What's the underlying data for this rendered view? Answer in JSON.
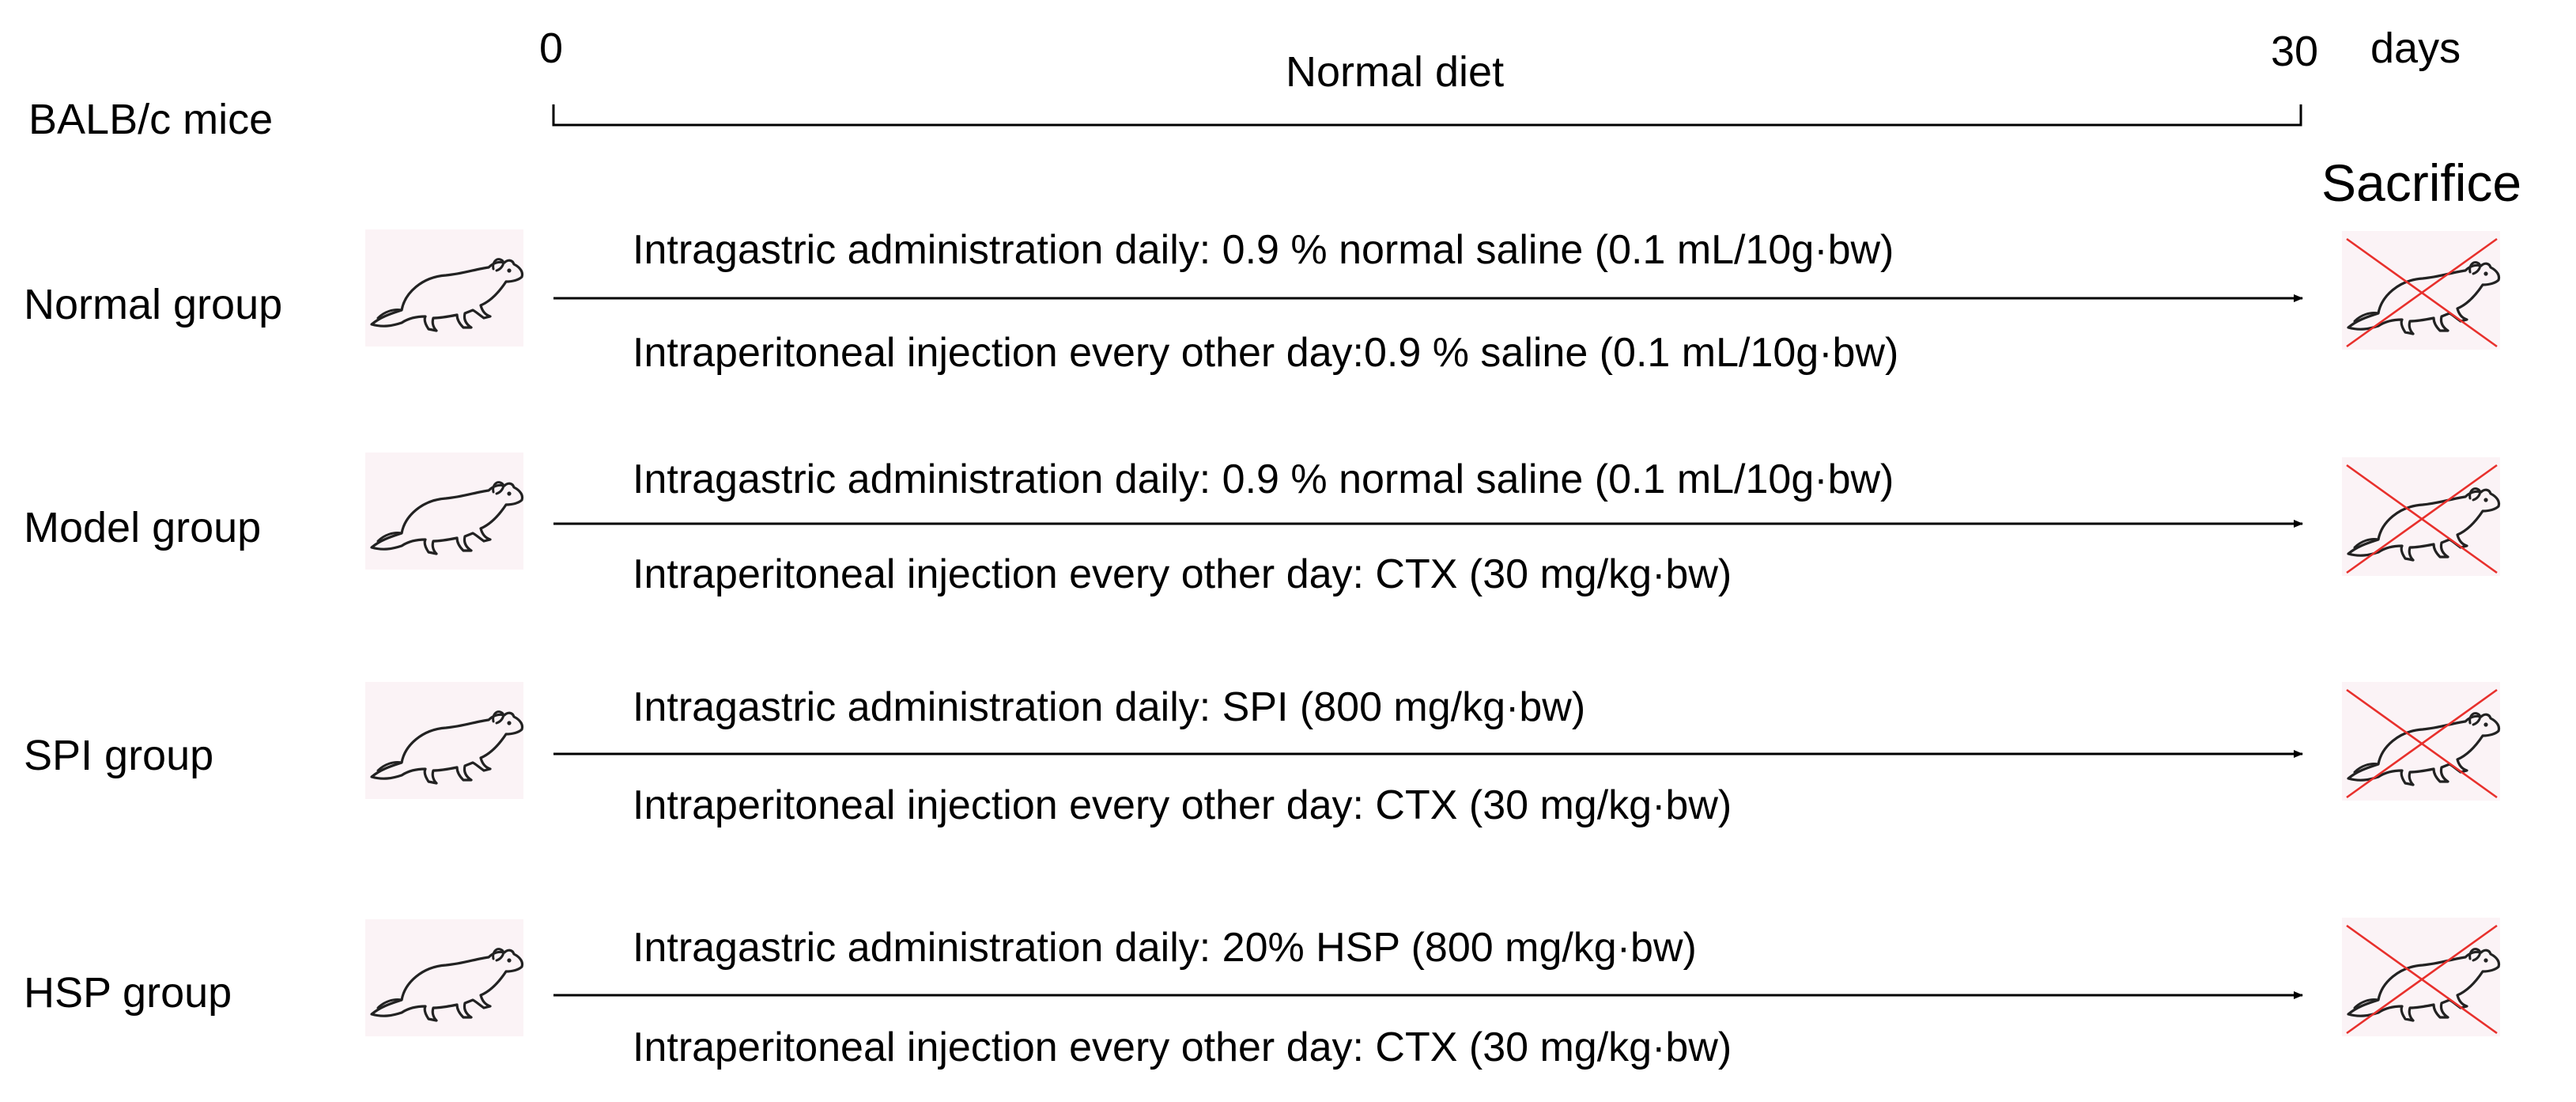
{
  "timeline": {
    "start_label": "0",
    "end_label": "30",
    "unit_label": "days",
    "diet_label": "Normal diet",
    "subject_label": "BALB/c mice",
    "end_event_label": "Sacrifice"
  },
  "groups": [
    {
      "name": "Normal group",
      "intragastric": "Intragastric administration daily: 0.9 % normal saline (0.1 mL/10g·bw)",
      "intraperitoneal": "Intraperitoneal injection every other day:0.9 % saline (0.1 mL/10g·bw)"
    },
    {
      "name": "Model group",
      "intragastric": "Intragastric administration daily: 0.9 % normal saline (0.1 mL/10g·bw)",
      "intraperitoneal": "Intraperitoneal injection every other day: CTX (30 mg/kg·bw)"
    },
    {
      "name": "SPI group",
      "intragastric": "Intragastric administration daily: SPI (800 mg/kg·bw)",
      "intraperitoneal": "Intraperitoneal injection every other day: CTX (30 mg/kg·bw)"
    },
    {
      "name": "HSP group",
      "intragastric": "Intragastric administration daily: 20% HSP (800 mg/kg·bw)",
      "intraperitoneal": "Intraperitoneal injection every other day: CTX (30 mg/kg·bw)"
    }
  ],
  "icons": {
    "live_mouse": "mouse-icon",
    "sacrificed_mouse": "crossed-out-mouse-icon"
  },
  "colors": {
    "line": "#000000",
    "cross": "#e8302c",
    "icon_bg": "#fbf3f6"
  }
}
